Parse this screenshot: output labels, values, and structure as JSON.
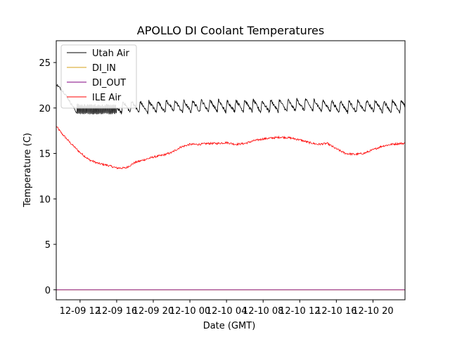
{
  "chart_data": {
    "type": "line",
    "title": "APOLLO DI Coolant Temperatures",
    "xlabel": "Date (GMT)",
    "ylabel": "Temperature (C)",
    "x_unit": "hours since 12-09 08:00 GMT",
    "xlim": [
      1.4,
      39.5
    ],
    "ylim": [
      -1.1,
      27.4
    ],
    "x_ticks": [
      {
        "value": 4,
        "label": "12-09 12"
      },
      {
        "value": 8,
        "label": "12-09 16"
      },
      {
        "value": 12,
        "label": "12-09 20"
      },
      {
        "value": 16,
        "label": "12-10 00"
      },
      {
        "value": 20,
        "label": "12-10 04"
      },
      {
        "value": 24,
        "label": "12-10 08"
      },
      {
        "value": 28,
        "label": "12-10 12"
      },
      {
        "value": 32,
        "label": "12-10 16"
      },
      {
        "value": 36,
        "label": "12-10 20"
      }
    ],
    "y_ticks": [
      {
        "value": 0,
        "label": "0"
      },
      {
        "value": 5,
        "label": "5"
      },
      {
        "value": 10,
        "label": "10"
      },
      {
        "value": 15,
        "label": "15"
      },
      {
        "value": 20,
        "label": "20"
      },
      {
        "value": 25,
        "label": "25"
      }
    ],
    "legend_position": "top-left",
    "series": [
      {
        "name": "Utah Air",
        "color": "#000000",
        "x": [
          1.4,
          2.0,
          2.6,
          3.0,
          3.4,
          3.6,
          4.0,
          5.0,
          6.0,
          7.0,
          7.5,
          8.0,
          8.5,
          9.0,
          10.0,
          11.0,
          12.0,
          13.0,
          14.0,
          15.0,
          16.0,
          17.0,
          18.0,
          19.0,
          20.0,
          21.0,
          22.0,
          23.0,
          24.0,
          25.0,
          26.0,
          27.0,
          28.0,
          29.0,
          30.0,
          31.0,
          32.0,
          33.0,
          34.0,
          35.0,
          36.0,
          37.0,
          38.0,
          39.0,
          39.5
        ],
        "y": [
          22.6,
          22.0,
          21.2,
          20.5,
          19.9,
          19.5,
          19.4,
          19.4,
          19.4,
          19.4,
          19.4,
          19.4,
          19.6,
          19.7,
          19.7,
          19.6,
          19.7,
          19.7,
          19.8,
          19.7,
          19.7,
          19.8,
          19.8,
          19.8,
          19.7,
          19.8,
          19.8,
          19.8,
          19.7,
          19.8,
          19.8,
          19.8,
          19.9,
          19.9,
          19.8,
          19.8,
          19.7,
          19.7,
          19.7,
          19.7,
          19.8,
          19.7,
          19.7,
          19.7,
          19.8
        ]
      },
      {
        "name": "DI_IN",
        "color": "#d4a017",
        "x": [
          1.4,
          39.5
        ],
        "y": [
          0.0,
          0.0
        ]
      },
      {
        "name": "DI_OUT",
        "color": "#800080",
        "x": [
          1.4,
          39.5
        ],
        "y": [
          0.0,
          0.0
        ]
      },
      {
        "name": "ILE Air",
        "color": "#ff0000",
        "x": [
          1.4,
          2.0,
          3.0,
          4.0,
          5.0,
          6.0,
          7.0,
          8.0,
          9.0,
          10.0,
          11.0,
          12.0,
          13.0,
          14.0,
          15.0,
          16.0,
          17.0,
          18.0,
          19.0,
          20.0,
          21.0,
          22.0,
          23.0,
          24.0,
          25.0,
          26.0,
          27.0,
          28.0,
          29.0,
          30.0,
          31.0,
          32.0,
          33.0,
          34.0,
          35.0,
          36.0,
          37.0,
          38.0,
          39.0,
          39.5
        ],
        "y": [
          18.0,
          17.2,
          16.1,
          15.1,
          14.3,
          13.9,
          13.7,
          13.4,
          13.4,
          14.0,
          14.3,
          14.6,
          14.8,
          15.1,
          15.7,
          16.0,
          16.0,
          16.1,
          16.1,
          16.2,
          16.0,
          16.1,
          16.4,
          16.6,
          16.7,
          16.8,
          16.7,
          16.5,
          16.2,
          16.0,
          16.1,
          15.5,
          15.0,
          14.9,
          15.0,
          15.4,
          15.8,
          16.0,
          16.1,
          16.1
        ]
      }
    ]
  }
}
